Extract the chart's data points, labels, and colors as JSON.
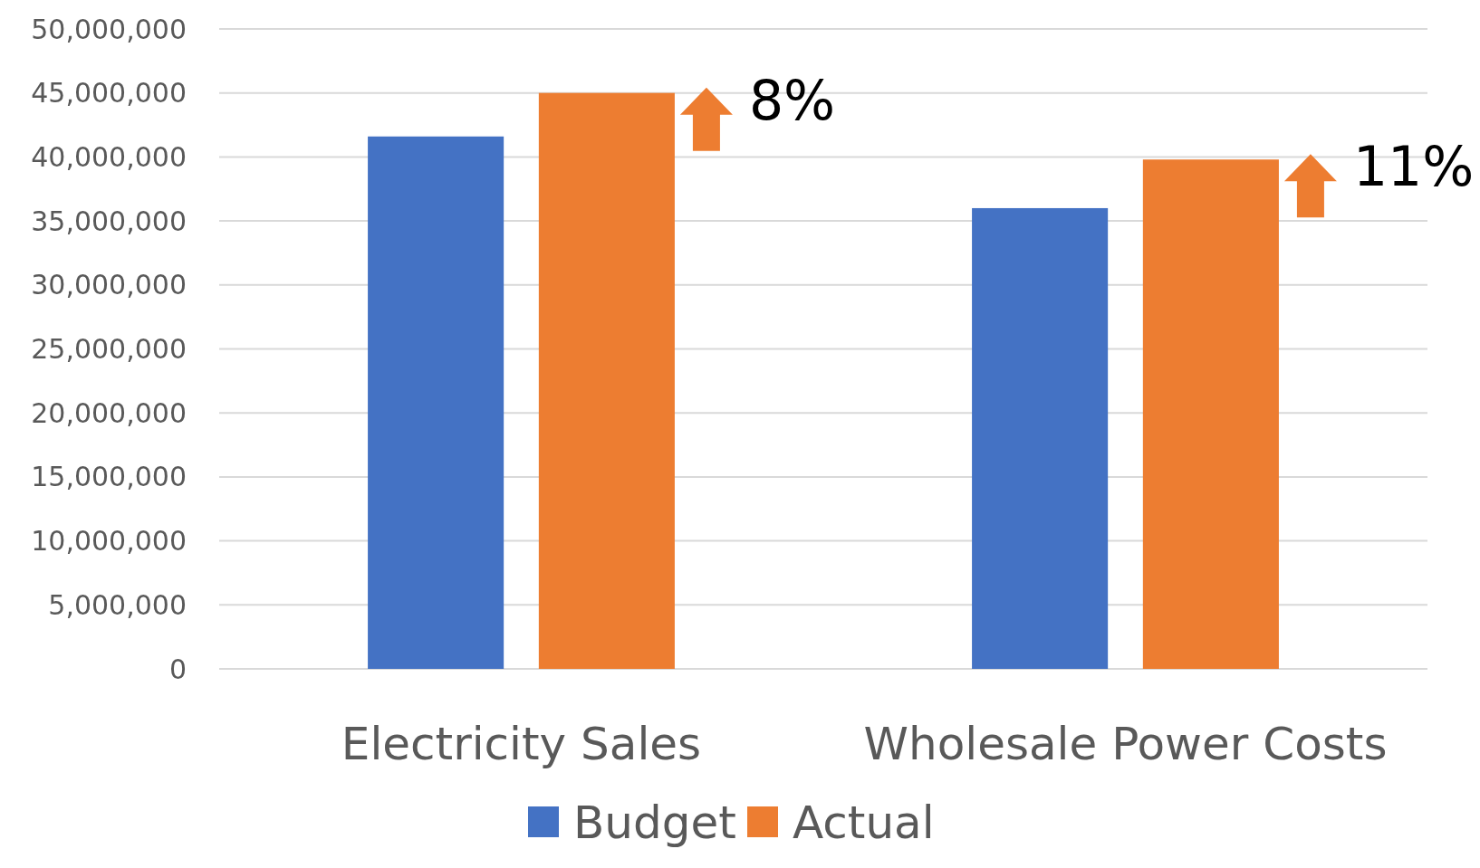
{
  "chart_data": {
    "type": "bar",
    "categories": [
      "Electricity Sales",
      "Wholesale Power Costs"
    ],
    "series": [
      {
        "name": "Budget",
        "color": "#4472c4",
        "values": [
          41600000,
          36000000
        ]
      },
      {
        "name": "Actual",
        "color": "#ed7d31",
        "values": [
          45000000,
          39800000
        ]
      }
    ],
    "ylim": [
      0,
      50000000
    ],
    "yticks": [
      0,
      {
        "value": 5000000,
        "label": "5,000,000"
      },
      {
        "value": 10000000,
        "label": "10,000,000"
      },
      {
        "value": 15000000,
        "label": "15,000,000"
      },
      {
        "value": 20000000,
        "label": "20,000,000"
      },
      {
        "value": 25000000,
        "label": "25,000,000"
      },
      {
        "value": 30000000,
        "label": "30,000,000"
      },
      {
        "value": 35000000,
        "label": "35,000,000"
      },
      {
        "value": 40000000,
        "label": "40,000,000"
      },
      {
        "value": 45000000,
        "label": "45,000,000"
      },
      {
        "value": 50000000,
        "label": "50,000,000"
      }
    ],
    "grid": "y",
    "legend": "bottom",
    "annotations": [
      "8%",
      "11%"
    ]
  }
}
